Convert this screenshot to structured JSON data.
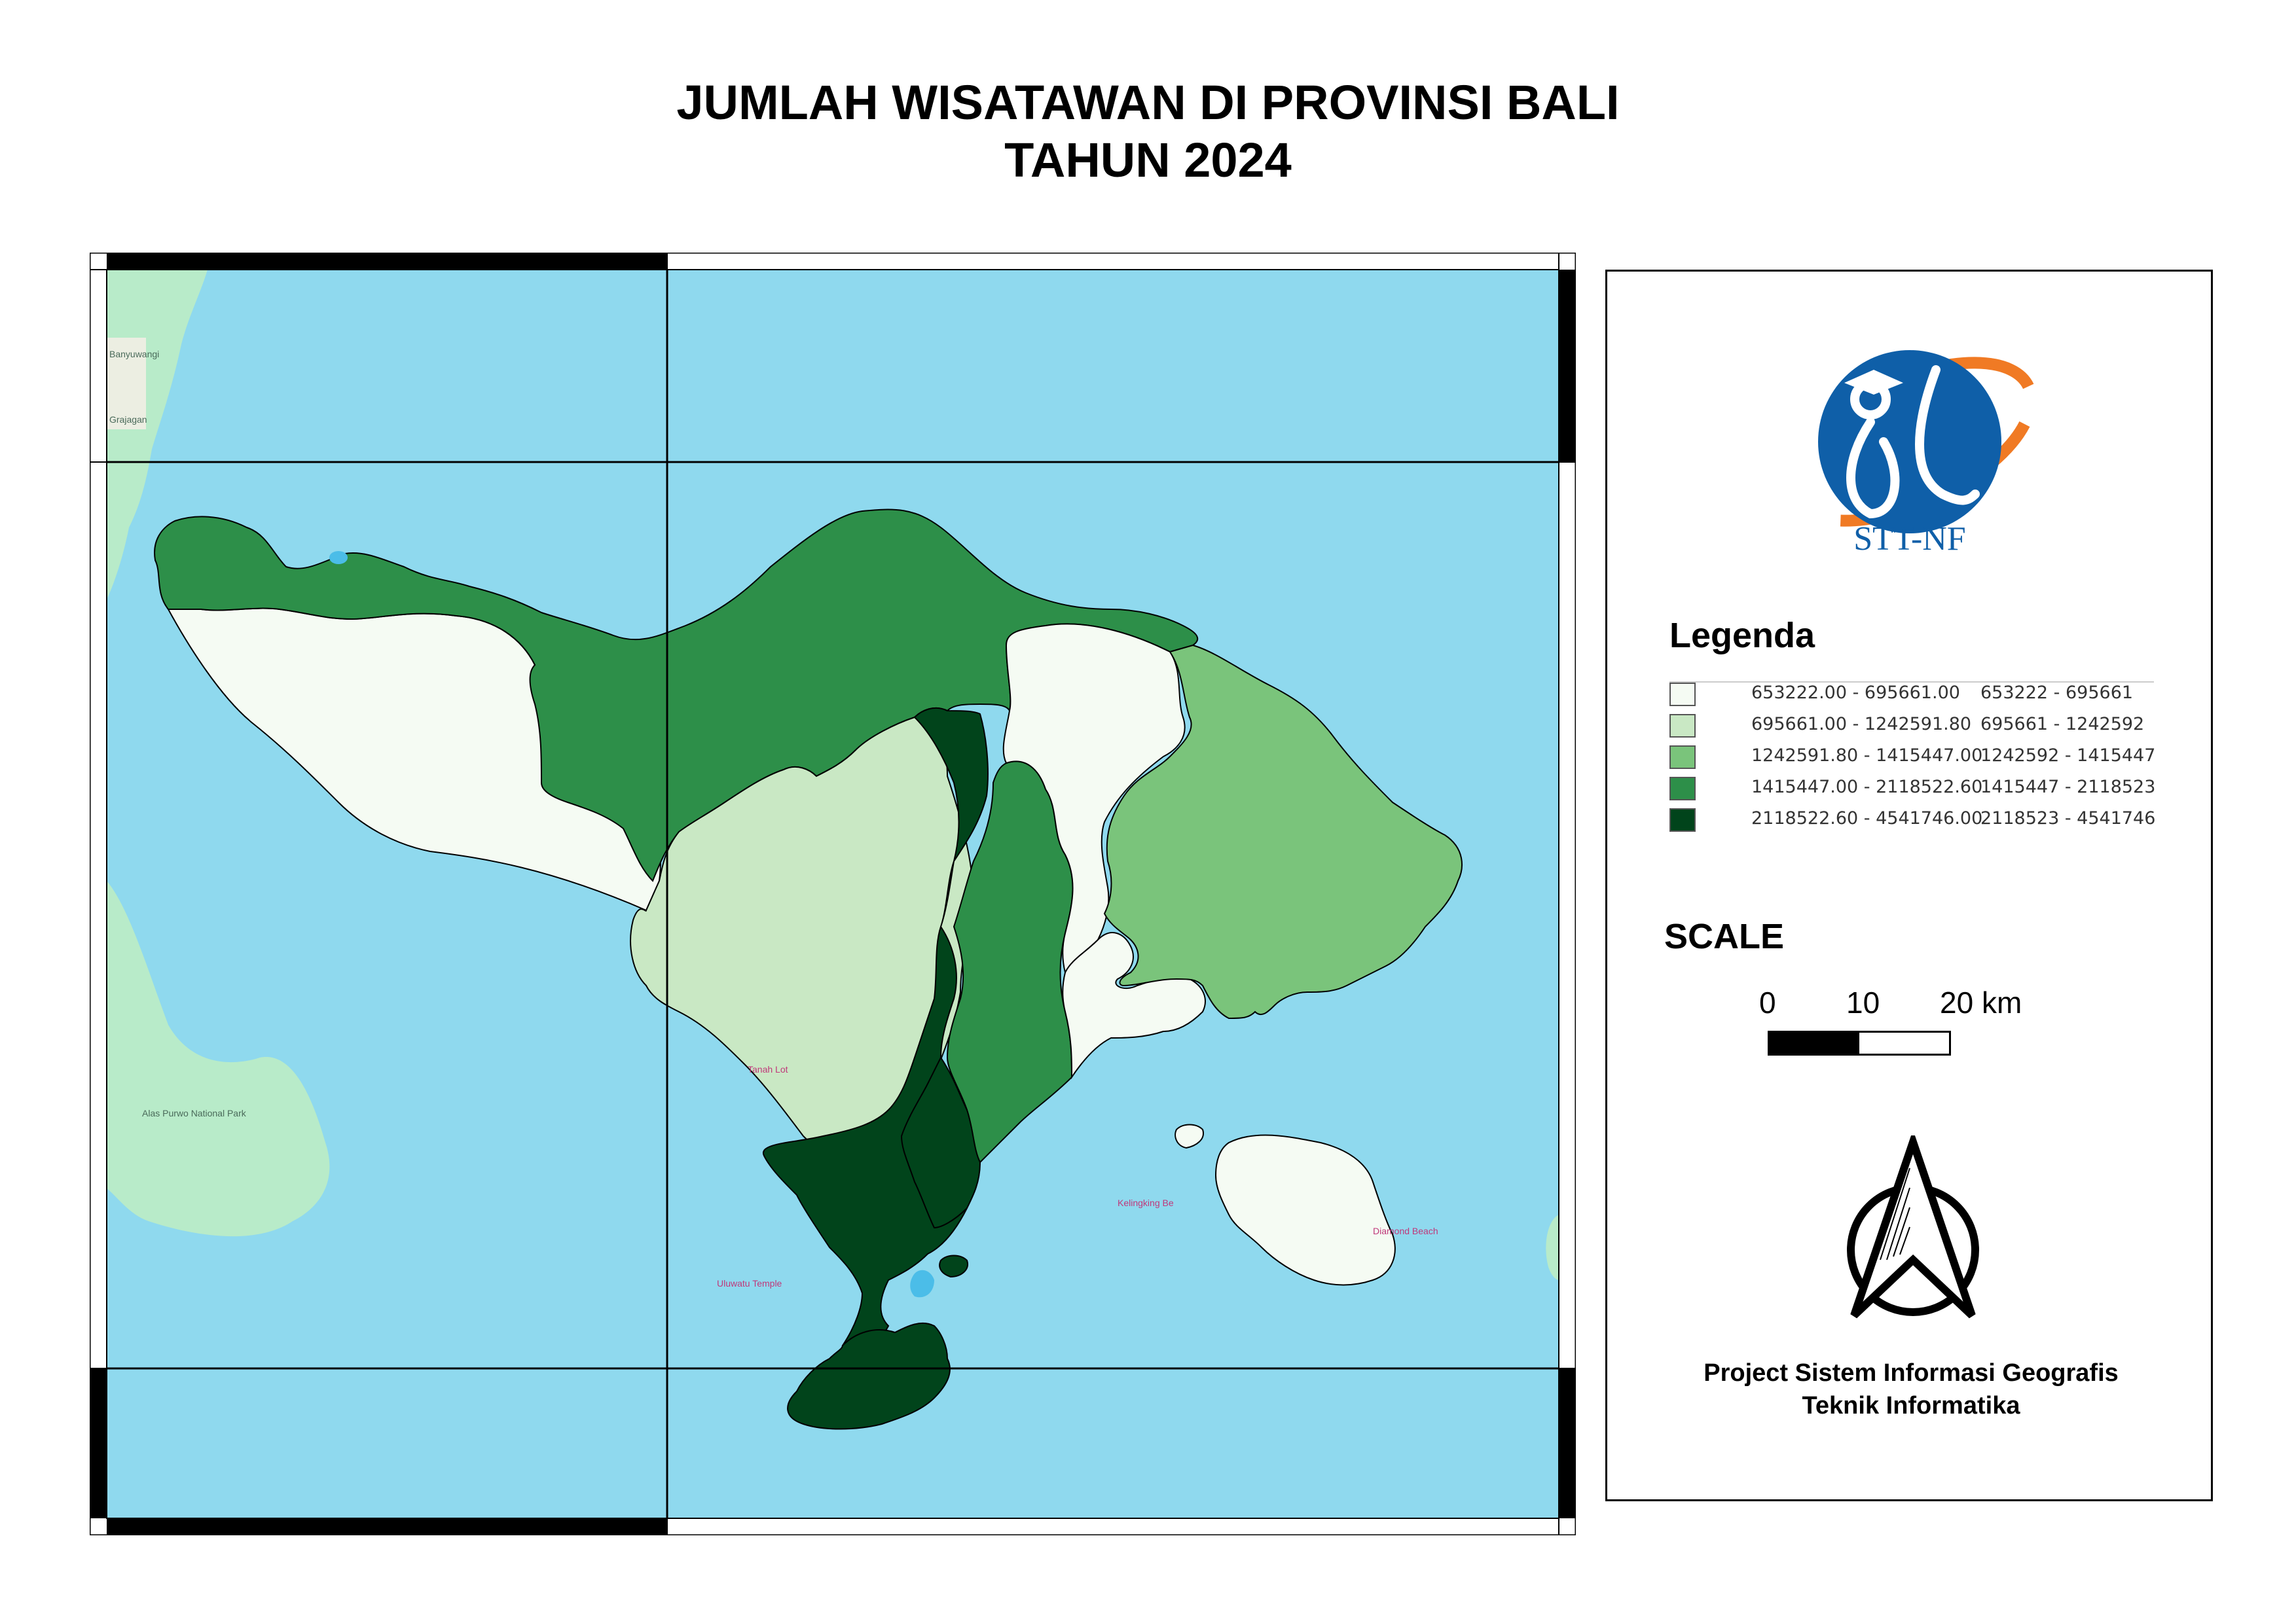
{
  "title": {
    "line1": "JUMLAH WISATAWAN DI PROVINSI BALI",
    "line2": "TAHUN 2024"
  },
  "map": {
    "sea_color": "#8fd9ee",
    "neighbor_land_color": "#b8ebc9",
    "regions": [
      {
        "class": 1,
        "color": "#f5fbf3"
      },
      {
        "class": 2,
        "color": "#c9e8c4"
      },
      {
        "class": 3,
        "color": "#7ac47b"
      },
      {
        "class": 4,
        "color": "#2d8f49"
      },
      {
        "class": 5,
        "color": "#01441b"
      }
    ],
    "basemap_labels": [
      "Tanah Lot",
      "Uluwatu Temple",
      "Kelingking Be",
      "Diamond Beach",
      "Alas Purwo National Park",
      "Banyuwangi",
      "Grajagan"
    ]
  },
  "logo": {
    "text": "STT-NF",
    "circle_color": "#0f5fa8",
    "arc_color": "#f07a24"
  },
  "legend": {
    "title": "Legenda",
    "classes": [
      {
        "label": "653222.00 - 695661.00",
        "range": "653222 - 695661",
        "color": "#f5fbf3"
      },
      {
        "label": "695661.00 - 1242591.80",
        "range": "695661 - 1242592",
        "color": "#c9e8c4"
      },
      {
        "label": "1242591.80 - 1415447.00",
        "range": "1242592 - 1415447",
        "color": "#7ac47b"
      },
      {
        "label": "1415447.00 - 2118522.60",
        "range": "1415447 - 2118523",
        "color": "#2d8f49"
      },
      {
        "label": "2118522.60 - 4541746.00",
        "range": "2118523 - 4541746",
        "color": "#01441b"
      }
    ]
  },
  "scale": {
    "title": "SCALE",
    "tick0": "0",
    "tick1": "10",
    "tick2": "20 km"
  },
  "footer": {
    "line1": "Project Sistem Informasi Geografis",
    "line2": "Teknik Informatika"
  }
}
